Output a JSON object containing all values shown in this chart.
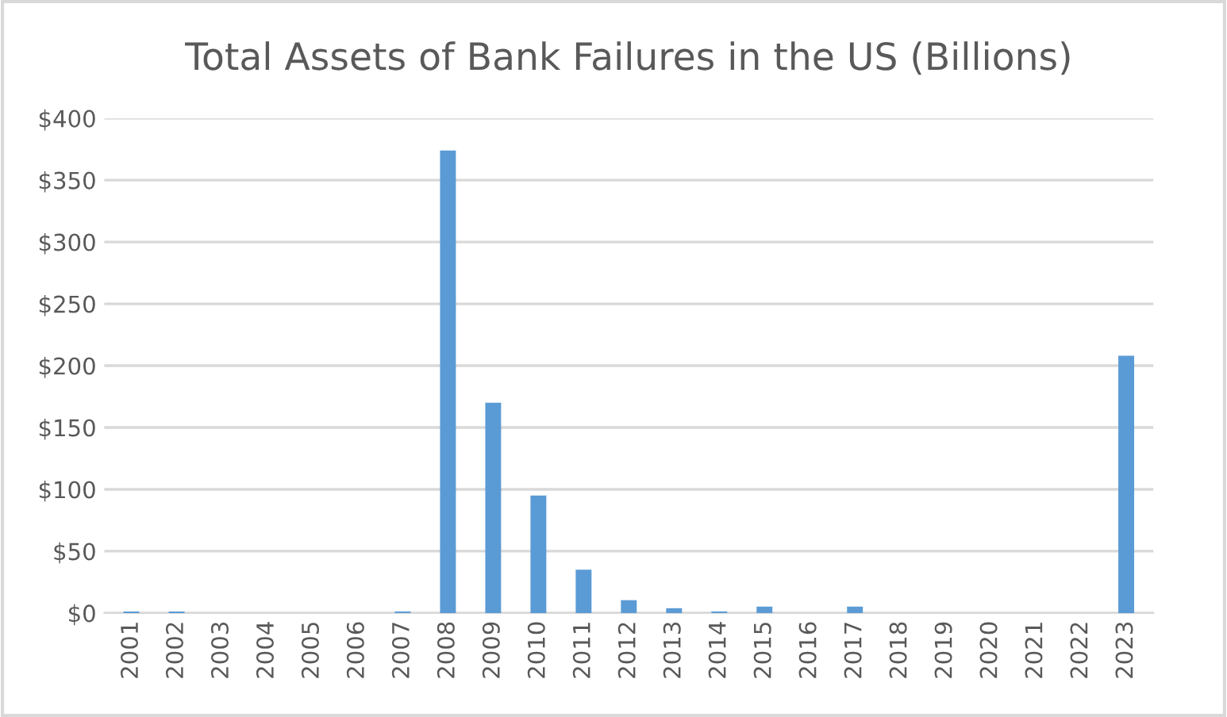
{
  "chart_data": {
    "type": "bar",
    "title": "Total Assets of Bank Failures in the US (Billions)",
    "categories": [
      "2001",
      "2002",
      "2003",
      "2004",
      "2005",
      "2006",
      "2007",
      "2008",
      "2009",
      "2010",
      "2011",
      "2012",
      "2013",
      "2014",
      "2015",
      "2016",
      "2017",
      "2018",
      "2019",
      "2020",
      "2021",
      "2022",
      "2023"
    ],
    "values": [
      1.3,
      1.3,
      0,
      0,
      0,
      0,
      1.3,
      374,
      170,
      95,
      35,
      10.4,
      3.9,
      1.3,
      5.2,
      0,
      5.2,
      0,
      0,
      0,
      0,
      0,
      208
    ],
    "color": "#5b9bd5",
    "ylim": [
      0,
      400
    ],
    "yticks": [
      {
        "value": 0,
        "label": "$0"
      },
      {
        "value": 50,
        "label": "$50"
      },
      {
        "value": 100,
        "label": "$100"
      },
      {
        "value": 150,
        "label": "$150"
      },
      {
        "value": 200,
        "label": "$200"
      },
      {
        "value": 250,
        "label": "$250"
      },
      {
        "value": 300,
        "label": "$300"
      },
      {
        "value": 350,
        "label": "$350"
      },
      {
        "value": 400,
        "label": "$400"
      }
    ],
    "grid": "y",
    "legend": false
  }
}
